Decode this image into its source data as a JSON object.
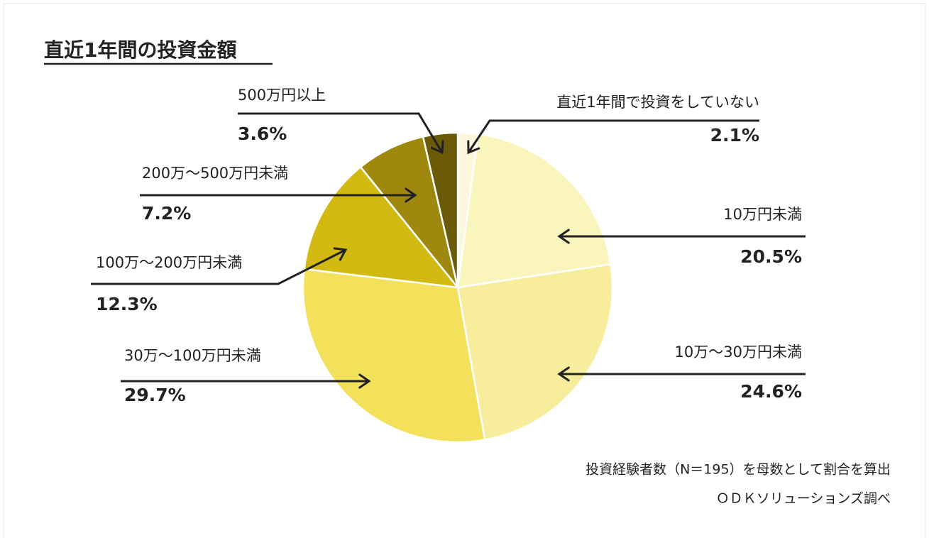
{
  "chart_data": {
    "type": "pie",
    "title": "直近1年間の投資金額",
    "categories": [
      "直近1年間で投資をしていない",
      "10万円未満",
      "10万～30万円未満",
      "30万～100万円未満",
      "100万～200万円未満",
      "200万～500万円未満",
      "500万円以上"
    ],
    "values": [
      2.1,
      20.5,
      24.6,
      29.7,
      12.3,
      7.2,
      3.6
    ],
    "value_labels": [
      "2.1%",
      "20.5%",
      "24.6%",
      "29.7%",
      "12.3%",
      "7.2%",
      "3.6%"
    ],
    "colors": [
      "#fdf7dc",
      "#faf4bd",
      "#f8ed9d",
      "#f3e15b",
      "#d3ba12",
      "#9e880d",
      "#6b5a07"
    ],
    "notes": [
      "投資経験者数（N＝195）を母数として割合を算出",
      "ＯＤＫソリューションズ調べ"
    ]
  }
}
